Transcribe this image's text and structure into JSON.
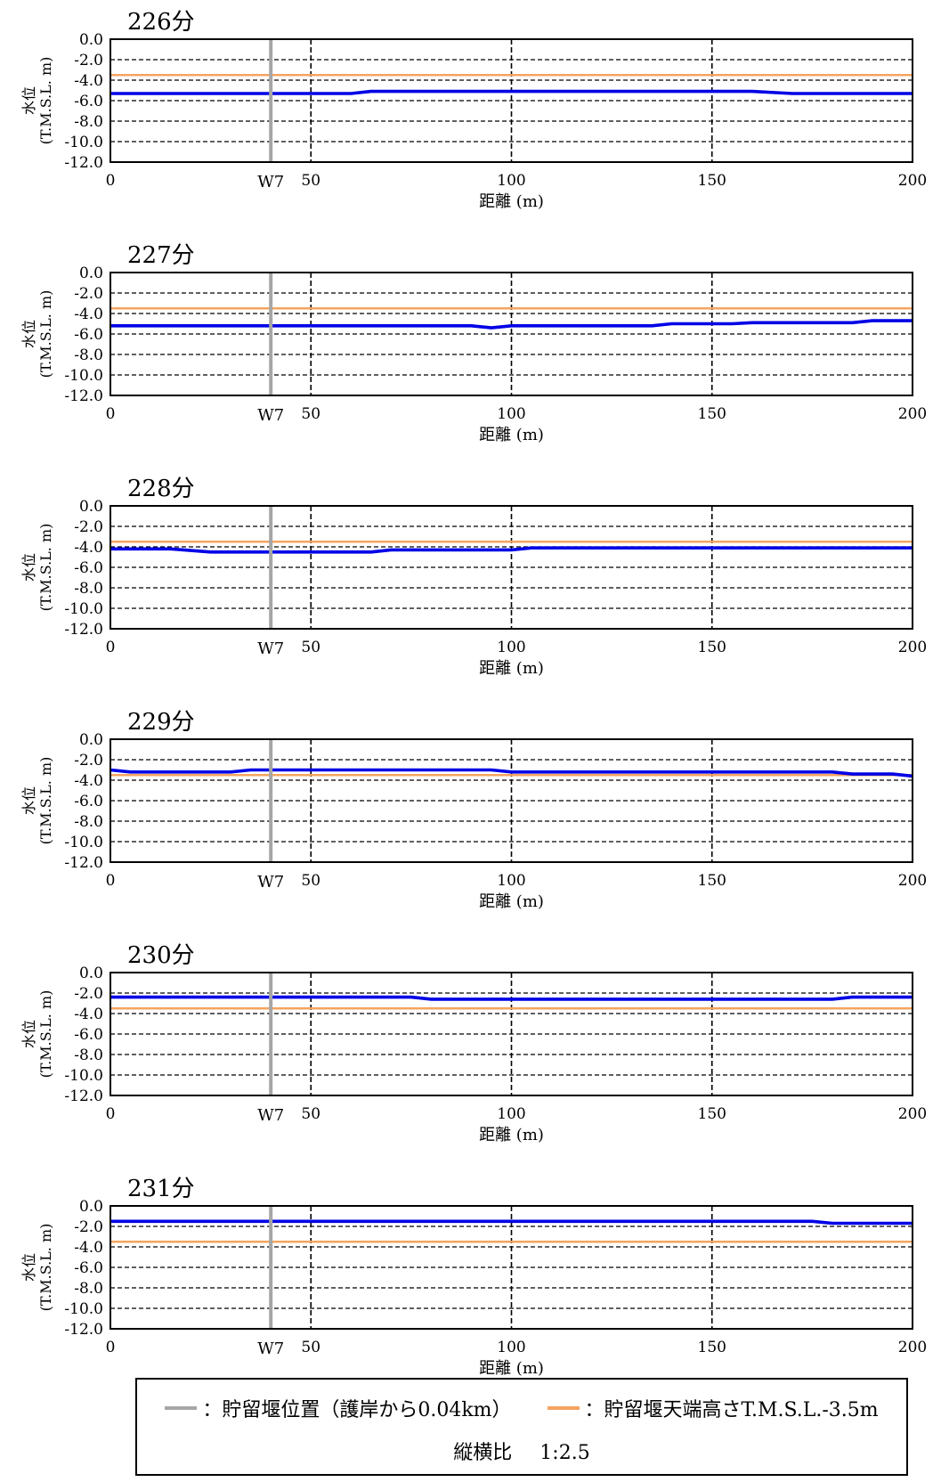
{
  "colors": {
    "water_level": "#0000e6",
    "weir_top": "#f4a460",
    "weir_position": "#a6a6a6",
    "grid": "#000000"
  },
  "chart_data": [
    {
      "type": "line",
      "title": "226分",
      "xlabel": "距離 (m)",
      "ylabel": "水位\n(T.M.S.L. m)",
      "xlim": [
        0,
        200
      ],
      "ylim": [
        -12.0,
        0.0
      ],
      "x_ticks": [
        "0",
        "50",
        "100",
        "150",
        "200"
      ],
      "y_ticks": [
        "0.0",
        "-2.0",
        "-4.0",
        "-6.0",
        "-8.0",
        "-10.0",
        "-12.0"
      ],
      "weir_label": "W7",
      "weir_x": 40,
      "weir_top": -3.5,
      "series": [
        {
          "x": [
            0,
            60,
            65,
            160,
            170,
            200
          ],
          "y": [
            -5.3,
            -5.3,
            -5.1,
            -5.1,
            -5.3,
            -5.3
          ]
        }
      ]
    },
    {
      "type": "line",
      "title": "227分",
      "xlabel": "距離 (m)",
      "ylabel": "水位\n(T.M.S.L. m)",
      "xlim": [
        0,
        200
      ],
      "ylim": [
        -12.0,
        0.0
      ],
      "x_ticks": [
        "0",
        "50",
        "100",
        "150",
        "200"
      ],
      "y_ticks": [
        "0.0",
        "-2.0",
        "-4.0",
        "-6.0",
        "-8.0",
        "-10.0",
        "-12.0"
      ],
      "weir_label": "W7",
      "weir_x": 40,
      "weir_top": -3.5,
      "series": [
        {
          "x": [
            0,
            90,
            95,
            100,
            135,
            140,
            155,
            160,
            185,
            190,
            200
          ],
          "y": [
            -5.2,
            -5.2,
            -5.4,
            -5.2,
            -5.2,
            -5.0,
            -5.0,
            -4.9,
            -4.9,
            -4.7,
            -4.7
          ]
        }
      ]
    },
    {
      "type": "line",
      "title": "228分",
      "xlabel": "距離 (m)",
      "ylabel": "水位\n(T.M.S.L. m)",
      "xlim": [
        0,
        200
      ],
      "ylim": [
        -12.0,
        0.0
      ],
      "x_ticks": [
        "0",
        "50",
        "100",
        "150",
        "200"
      ],
      "y_ticks": [
        "0.0",
        "-2.0",
        "-4.0",
        "-6.0",
        "-8.0",
        "-10.0",
        "-12.0"
      ],
      "weir_label": "W7",
      "weir_x": 40,
      "weir_top": -3.5,
      "series": [
        {
          "x": [
            0,
            15,
            25,
            65,
            70,
            100,
            105,
            200
          ],
          "y": [
            -4.2,
            -4.2,
            -4.5,
            -4.5,
            -4.3,
            -4.3,
            -4.1,
            -4.1
          ]
        }
      ]
    },
    {
      "type": "line",
      "title": "229分",
      "xlabel": "距離 (m)",
      "ylabel": "水位\n(T.M.S.L. m)",
      "xlim": [
        0,
        200
      ],
      "ylim": [
        -12.0,
        0.0
      ],
      "x_ticks": [
        "0",
        "50",
        "100",
        "150",
        "200"
      ],
      "y_ticks": [
        "0.0",
        "-2.0",
        "-4.0",
        "-6.0",
        "-8.0",
        "-10.0",
        "-12.0"
      ],
      "weir_label": "W7",
      "weir_x": 40,
      "weir_top": -3.5,
      "series": [
        {
          "x": [
            0,
            5,
            30,
            35,
            95,
            100,
            180,
            185,
            195,
            200
          ],
          "y": [
            -3.0,
            -3.2,
            -3.2,
            -3.0,
            -3.0,
            -3.2,
            -3.2,
            -3.4,
            -3.4,
            -3.6
          ]
        }
      ]
    },
    {
      "type": "line",
      "title": "230分",
      "xlabel": "距離 (m)",
      "ylabel": "水位\n(T.M.S.L. m)",
      "xlim": [
        0,
        200
      ],
      "ylim": [
        -12.0,
        0.0
      ],
      "x_ticks": [
        "0",
        "50",
        "100",
        "150",
        "200"
      ],
      "y_ticks": [
        "0.0",
        "-2.0",
        "-4.0",
        "-6.0",
        "-8.0",
        "-10.0",
        "-12.0"
      ],
      "weir_label": "W7",
      "weir_x": 40,
      "weir_top": -3.5,
      "series": [
        {
          "x": [
            0,
            75,
            80,
            180,
            185,
            200
          ],
          "y": [
            -2.4,
            -2.4,
            -2.6,
            -2.6,
            -2.4,
            -2.4
          ]
        }
      ]
    },
    {
      "type": "line",
      "title": "231分",
      "xlabel": "距離 (m)",
      "ylabel": "水位\n(T.M.S.L. m)",
      "xlim": [
        0,
        200
      ],
      "ylim": [
        -12.0,
        0.0
      ],
      "x_ticks": [
        "0",
        "50",
        "100",
        "150",
        "200"
      ],
      "y_ticks": [
        "0.0",
        "-2.0",
        "-4.0",
        "-6.0",
        "-8.0",
        "-10.0",
        "-12.0"
      ],
      "weir_label": "W7",
      "weir_x": 40,
      "weir_top": -3.5,
      "series": [
        {
          "x": [
            0,
            175,
            180,
            200
          ],
          "y": [
            -1.5,
            -1.5,
            -1.7,
            -1.7
          ]
        }
      ]
    }
  ],
  "legend": {
    "weir_position_label": "：貯留堰位置（護岸から0.04km）",
    "weir_top_label": "：貯留堰天端高さT.M.S.L.-3.5m",
    "aspect_label": "縦横比",
    "aspect_value": "1:2.5"
  }
}
